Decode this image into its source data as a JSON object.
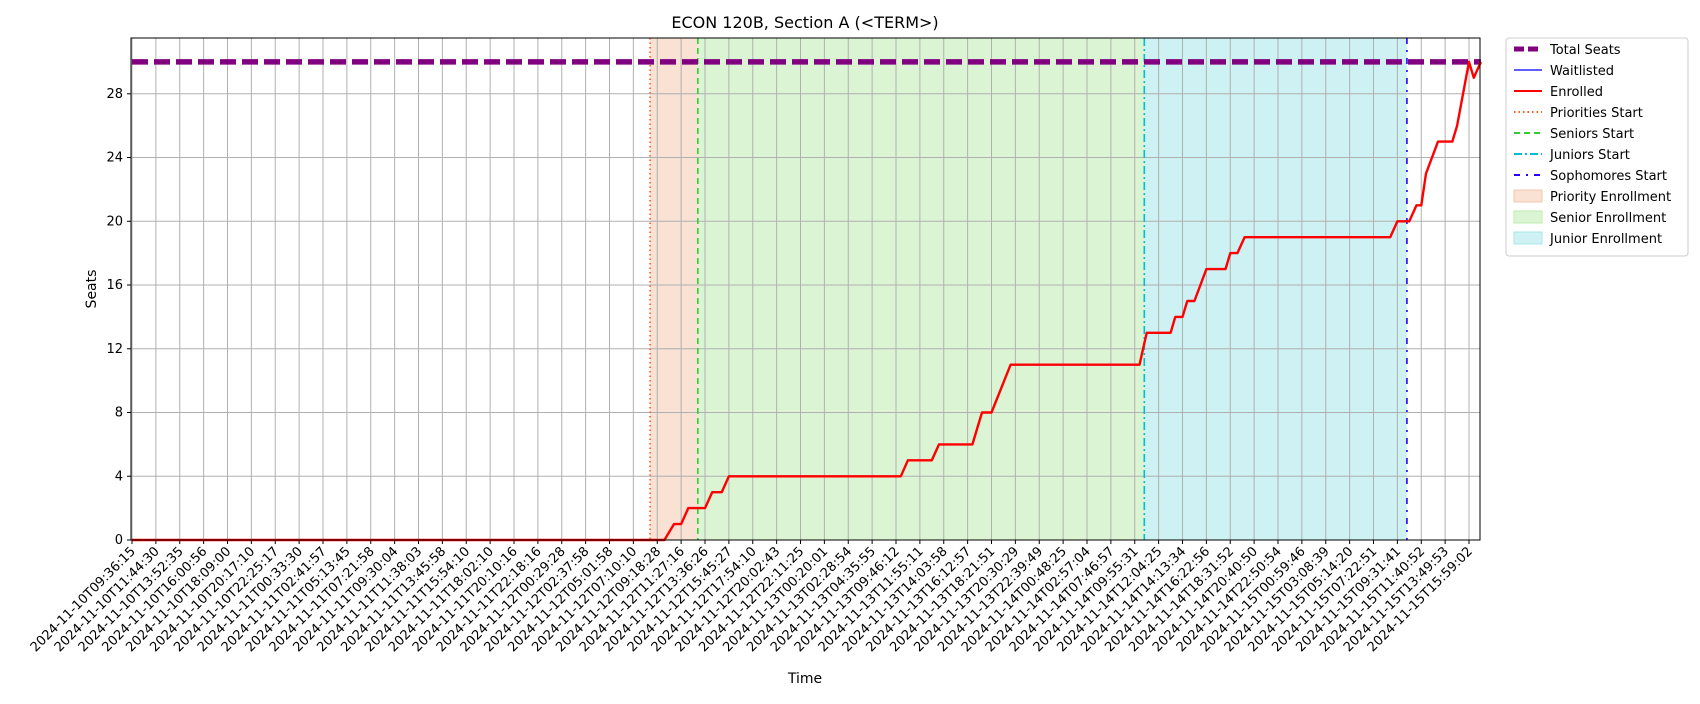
{
  "chart_data": {
    "type": "line",
    "title": "ECON 120B, Section A (<TERM>)",
    "xlabel": "Time",
    "ylabel": "Seats",
    "ylim": [
      0,
      31.5
    ],
    "yticks": [
      0,
      4,
      8,
      12,
      16,
      20,
      24,
      28
    ],
    "grid": true,
    "legend_position": "outside-right",
    "x_categories": [
      "2024-11-10T09:36:15",
      "2024-11-10T11:44:30",
      "2024-11-10T13:52:35",
      "2024-11-10T16:00:56",
      "2024-11-10T18:09:00",
      "2024-11-10T20:17:10",
      "2024-11-10T22:25:17",
      "2024-11-11T00:33:30",
      "2024-11-11T02:41:57",
      "2024-11-11T05:13:45",
      "2024-11-11T07:21:58",
      "2024-11-11T09:30:04",
      "2024-11-11T11:38:03",
      "2024-11-11T13:45:58",
      "2024-11-11T15:54:10",
      "2024-11-11T18:02:10",
      "2024-11-11T20:10:16",
      "2024-11-11T22:18:16",
      "2024-11-12T00:29:28",
      "2024-11-12T02:37:58",
      "2024-11-12T05:01:58",
      "2024-11-12T07:10:10",
      "2024-11-12T09:18:28",
      "2024-11-12T11:27:16",
      "2024-11-12T13:36:26",
      "2024-11-12T15:45:27",
      "2024-11-12T17:54:10",
      "2024-11-12T20:02:43",
      "2024-11-12T22:11:25",
      "2024-11-13T00:20:01",
      "2024-11-13T02:28:54",
      "2024-11-13T04:35:55",
      "2024-11-13T09:46:12",
      "2024-11-13T11:55:11",
      "2024-11-13T14:03:58",
      "2024-11-13T16:12:57",
      "2024-11-13T18:21:51",
      "2024-11-13T20:30:29",
      "2024-11-13T22:39:49",
      "2024-11-14T00:48:25",
      "2024-11-14T02:57:04",
      "2024-11-14T07:46:57",
      "2024-11-14T09:55:31",
      "2024-11-14T12:04:25",
      "2024-11-14T14:13:34",
      "2024-11-14T16:22:56",
      "2024-11-14T18:31:52",
      "2024-11-14T20:40:50",
      "2024-11-14T22:50:54",
      "2024-11-15T00:59:46",
      "2024-11-15T03:08:39",
      "2024-11-15T05:14:20",
      "2024-11-15T07:22:51",
      "2024-11-15T09:31:41",
      "2024-11-15T11:40:52",
      "2024-11-15T13:49:53",
      "2024-11-15T15:59:02"
    ],
    "series": [
      {
        "name": "Total Seats",
        "color": "#800080",
        "style": "dashed-thick",
        "points": [
          [
            0,
            30
          ],
          [
            56.5,
            30
          ]
        ]
      },
      {
        "name": "Waitlisted",
        "color": "#0000ff",
        "style": "solid-thin",
        "points": []
      },
      {
        "name": "Enrolled",
        "color": "#ff0000",
        "style": "solid",
        "points": [
          [
            0,
            0
          ],
          [
            22.3,
            0
          ],
          [
            22.7,
            1
          ],
          [
            23,
            1
          ],
          [
            23.3,
            2
          ],
          [
            24,
            2
          ],
          [
            24.3,
            3
          ],
          [
            24.7,
            3
          ],
          [
            25,
            4
          ],
          [
            32.2,
            4
          ],
          [
            32.5,
            5
          ],
          [
            33.5,
            5
          ],
          [
            33.8,
            6
          ],
          [
            35.2,
            6
          ],
          [
            35.6,
            8
          ],
          [
            36,
            8
          ],
          [
            36.8,
            11
          ],
          [
            42.2,
            11
          ],
          [
            42.5,
            13
          ],
          [
            43.5,
            13
          ],
          [
            43.7,
            14
          ],
          [
            44,
            14
          ],
          [
            44.2,
            15
          ],
          [
            44.5,
            15
          ],
          [
            45,
            17
          ],
          [
            45.8,
            17
          ],
          [
            46,
            18
          ],
          [
            46.3,
            18
          ],
          [
            46.6,
            19
          ],
          [
            52.7,
            19
          ],
          [
            53,
            20
          ],
          [
            53.5,
            20
          ],
          [
            53.8,
            21
          ],
          [
            54,
            21
          ],
          [
            54.2,
            23
          ],
          [
            54.7,
            25
          ],
          [
            55.3,
            25
          ],
          [
            55.5,
            26
          ],
          [
            56,
            30
          ],
          [
            56.2,
            29
          ],
          [
            56.5,
            30
          ]
        ]
      }
    ],
    "markers": [
      {
        "name": "Priorities Start",
        "x": 21.7,
        "color": "#ff5a1f",
        "style": "dotted"
      },
      {
        "name": "Seniors Start",
        "x": 23.7,
        "color": "#32cd32",
        "style": "dashed"
      },
      {
        "name": "Juniors Start",
        "x": 42.4,
        "color": "#00bcd4",
        "style": "dashdot"
      },
      {
        "name": "Sophomores Start",
        "x": 53.4,
        "color": "#2a00ff",
        "style": "dashdot-sparse"
      }
    ],
    "regions": [
      {
        "name": "Priority Enrollment",
        "from": 21.7,
        "to": 23.7,
        "color": "#f4c8b0"
      },
      {
        "name": "Senior Enrollment",
        "from": 23.7,
        "to": 42.4,
        "color": "#bdebb0"
      },
      {
        "name": "Junior Enrollment",
        "from": 42.4,
        "to": 53.4,
        "color": "#a6e6ea"
      }
    ]
  }
}
